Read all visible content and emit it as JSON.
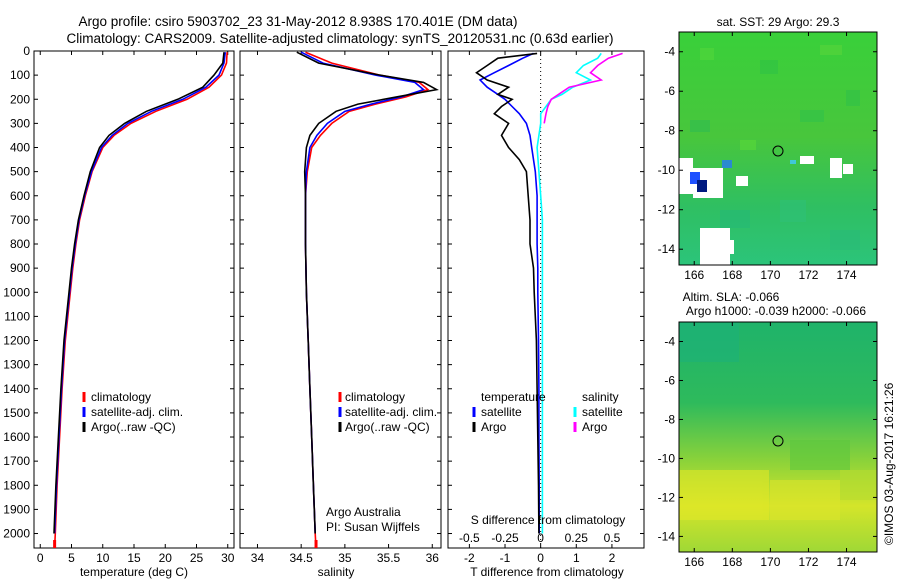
{
  "header": {
    "line1": "Argo profile: csiro 5903702_23 31-May-2012 8.938S 170.401E (DM data)",
    "line2": "Climatology: CARS2009. Satellite-adjusted climatology: synTS_20120531.nc (0.63d earlier)"
  },
  "colors": {
    "climatology": "#ff0000",
    "satellite": "#0000ff",
    "argo": "#000000",
    "satellite_sal": "#00ffff",
    "argo_sal": "#ff00ff"
  },
  "depth_axis": {
    "ticks": [
      0,
      100,
      200,
      300,
      400,
      500,
      600,
      700,
      800,
      900,
      1000,
      1100,
      1200,
      1300,
      1400,
      1500,
      1600,
      1700,
      1800,
      1900,
      2000
    ],
    "ylim": [
      0,
      2060
    ]
  },
  "chart_data": [
    {
      "type": "line",
      "id": "temperature",
      "xlabel": "temperature (deg C)",
      "xlim": [
        -1,
        31
      ],
      "xticks": [
        0,
        5,
        10,
        15,
        20,
        25,
        30
      ],
      "ylim": [
        0,
        2060
      ],
      "legend": {
        "placement": "lower-left",
        "entries": [
          "climatology",
          "satellite-adj. clim.",
          "Argo(..raw -QC)"
        ]
      },
      "series": [
        {
          "name": "climatology",
          "color": "#ff0000",
          "depth": [
            5,
            50,
            100,
            150,
            200,
            250,
            300,
            350,
            400,
            500,
            600,
            700,
            800,
            900,
            1000,
            1200,
            1400,
            1600,
            1800,
            2000,
            2060
          ],
          "values": [
            29.9,
            29.8,
            29.0,
            27.0,
            23.5,
            18.5,
            14.5,
            11.8,
            10.0,
            8.3,
            7.2,
            6.3,
            5.7,
            5.2,
            4.8,
            4.0,
            3.5,
            3.1,
            2.7,
            2.4,
            2.3
          ]
        },
        {
          "name": "satellite-adj. clim.",
          "color": "#0000ff",
          "depth": [
            5,
            50,
            100,
            150,
            200,
            250,
            300,
            350,
            400,
            500,
            600,
            700,
            800,
            900,
            1000,
            1200,
            1400,
            1600,
            1800,
            2000
          ],
          "values": [
            29.6,
            29.4,
            28.6,
            26.5,
            22.8,
            17.8,
            14.0,
            11.5,
            9.8,
            8.2,
            7.1,
            6.2,
            5.6,
            5.1,
            4.7,
            3.9,
            3.4,
            3.0,
            2.6,
            2.3
          ]
        },
        {
          "name": "Argo(..raw -QC)",
          "color": "#000000",
          "depth": [
            5,
            50,
            100,
            150,
            200,
            250,
            300,
            350,
            400,
            500,
            600,
            700,
            800,
            900,
            1000,
            1200,
            1400,
            1600,
            1800,
            2000
          ],
          "values": [
            29.4,
            29.2,
            27.8,
            26.0,
            22.0,
            17.0,
            13.5,
            11.0,
            9.5,
            8.0,
            7.0,
            6.1,
            5.5,
            5.0,
            4.6,
            3.8,
            3.3,
            2.9,
            2.5,
            2.2
          ]
        }
      ]
    },
    {
      "type": "line",
      "id": "salinity",
      "xlabel": "salinity",
      "xlim": [
        33.8,
        36.1
      ],
      "xticks": [
        34,
        34.5,
        35,
        35.5,
        36
      ],
      "ylim": [
        0,
        2060
      ],
      "legend": {
        "placement": "lower-left",
        "entries": [
          "climatology",
          "satellite-adj. clim.",
          "Argo(..raw -QC)"
        ]
      },
      "annotation": [
        "Argo Australia",
        "PI: Susan Wijffels"
      ],
      "series": [
        {
          "name": "climatology",
          "color": "#ff0000",
          "depth": [
            5,
            50,
            100,
            130,
            160,
            190,
            220,
            250,
            300,
            350,
            400,
            500,
            600,
            800,
            1000,
            1200,
            1400,
            1600,
            1800,
            2000,
            2060
          ],
          "values": [
            34.55,
            34.85,
            35.4,
            35.85,
            35.95,
            35.7,
            35.35,
            35.05,
            34.85,
            34.72,
            34.62,
            34.57,
            34.55,
            34.55,
            34.56,
            34.58,
            34.6,
            34.62,
            34.64,
            34.66,
            34.67
          ]
        },
        {
          "name": "satellite-adj. clim.",
          "color": "#0000ff",
          "depth": [
            5,
            50,
            100,
            130,
            160,
            190,
            220,
            250,
            300,
            350,
            400,
            500,
            600,
            800,
            1000,
            1200,
            1400,
            1600,
            1800,
            2000
          ],
          "values": [
            34.5,
            34.75,
            35.35,
            35.8,
            35.9,
            35.65,
            35.3,
            35.0,
            34.8,
            34.68,
            34.6,
            34.56,
            34.55,
            34.55,
            34.56,
            34.58,
            34.6,
            34.62,
            34.64,
            34.66
          ]
        },
        {
          "name": "Argo(..raw -QC)",
          "color": "#000000",
          "depth": [
            5,
            50,
            100,
            130,
            160,
            190,
            220,
            250,
            300,
            350,
            400,
            500,
            600,
            800,
            1000,
            1200,
            1400,
            1600,
            1800,
            2000
          ],
          "values": [
            34.45,
            34.7,
            35.4,
            35.9,
            36.05,
            35.6,
            35.15,
            34.9,
            34.7,
            34.6,
            34.56,
            34.54,
            34.55,
            34.55,
            34.56,
            34.58,
            34.6,
            34.62,
            34.64,
            34.66
          ]
        }
      ]
    },
    {
      "type": "line",
      "id": "difference",
      "xlabel": "T difference from climatology",
      "xlabel_top": "S difference from climatology",
      "xlim": [
        -2.6,
        2.9
      ],
      "xticks": [
        -2,
        -1,
        0,
        1,
        2
      ],
      "sticks_labels": [
        "-0.5",
        "-0.25",
        "0",
        "0.25",
        "0.5"
      ],
      "sticks_at": [
        -2,
        -1,
        0,
        1,
        2
      ],
      "ylim": [
        0,
        2060
      ],
      "legend": {
        "placement": "lower-left",
        "headers": [
          "temperature",
          "salinity"
        ],
        "entries": [
          "satellite",
          "Argo",
          "satellite",
          "Argo"
        ]
      },
      "series": [
        {
          "name": "satellite",
          "color": "#0000ff",
          "depth": [
            10,
            30,
            60,
            90,
            120,
            150,
            180,
            200,
            230,
            260,
            300,
            350,
            400,
            450,
            500,
            600,
            700,
            800,
            900,
            1000,
            1200,
            1400,
            1600,
            1800,
            2000
          ],
          "values": [
            -0.2,
            -0.5,
            -0.9,
            -1.3,
            -1.7,
            -1.5,
            -1.2,
            -1.0,
            -0.8,
            -0.6,
            -0.4,
            -0.3,
            -0.25,
            -0.2,
            -0.15,
            -0.1,
            -0.1,
            -0.1,
            -0.08,
            -0.08,
            -0.06,
            -0.05,
            -0.05,
            -0.04,
            -0.04
          ]
        },
        {
          "name": "Argo",
          "color": "#000000",
          "depth": [
            10,
            30,
            60,
            90,
            120,
            150,
            180,
            200,
            230,
            260,
            300,
            350,
            400,
            450,
            500,
            600,
            700,
            800,
            900,
            1000,
            1100,
            1200,
            1400,
            1600,
            1800,
            2000
          ],
          "values": [
            -0.1,
            -1.2,
            -1.5,
            -1.8,
            -1.5,
            -0.9,
            -1.2,
            -0.8,
            -1.1,
            -1.3,
            -0.9,
            -1.1,
            -0.9,
            -0.6,
            -0.4,
            -0.35,
            -0.3,
            -0.3,
            -0.2,
            -0.18,
            -0.15,
            -0.12,
            -0.1,
            -0.08,
            -0.06,
            -0.05
          ]
        },
        {
          "name": "satellite (salinity)",
          "color": "#00ffff",
          "depth": [
            10,
            30,
            60,
            90,
            120,
            150,
            180,
            200,
            230,
            260,
            300,
            350,
            400,
            500,
            600,
            700,
            800,
            900,
            1000,
            1200,
            1400,
            1600,
            1800,
            2000
          ],
          "values": [
            1.7,
            1.6,
            1.2,
            1.0,
            1.4,
            0.9,
            0.6,
            0.3,
            0.15,
            0.0,
            0.0,
            -0.05,
            -0.1,
            -0.05,
            0.0,
            0.05,
            0.05,
            0.05,
            0.05,
            0.05,
            0.05,
            0.05,
            0.05,
            0.05
          ]
        },
        {
          "name": "Argo (salinity)",
          "color": "#ff00ff",
          "depth": [
            10,
            30,
            60,
            90,
            120,
            150,
            180,
            200,
            230,
            260,
            300
          ],
          "values": [
            2.3,
            1.9,
            1.6,
            1.4,
            1.7,
            0.8,
            0.5,
            0.3,
            0.2,
            0.15,
            0.1
          ]
        }
      ]
    }
  ],
  "sst_map": {
    "title": "sat. SST: 29 Argo: 29.3",
    "xticks": [
      166,
      168,
      170,
      172,
      174
    ],
    "yticks": [
      -4,
      -6,
      -8,
      -10,
      -12,
      -14
    ],
    "marker": {
      "lon": 170.4,
      "lat": -8.94
    }
  },
  "sla_map": {
    "title_line1": "Altim. SLA: -0.066",
    "title_line2": "Argo h1000: -0.039 h2000: -0.066",
    "xticks": [
      166,
      168,
      170,
      172,
      174
    ],
    "yticks": [
      -4,
      -6,
      -8,
      -10,
      -12,
      -14
    ],
    "marker": {
      "lon": 170.4,
      "lat": -8.94
    }
  },
  "stamp": "©IMOS 03-Aug-2017 16:21:26"
}
